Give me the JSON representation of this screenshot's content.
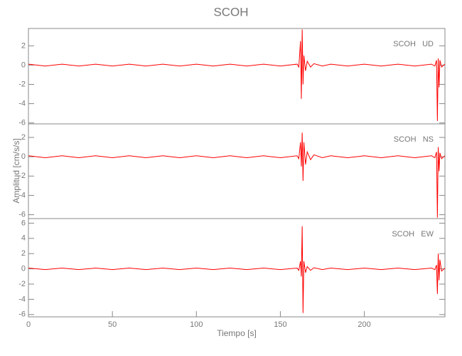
{
  "chart_data": [
    {
      "type": "line",
      "title": "SCOH",
      "annotation": "SCOH   UD",
      "xlim": [
        0,
        248
      ],
      "ylim": [
        -6.1,
        3.8
      ],
      "yticks": [
        -6,
        -4,
        -2,
        0,
        2
      ],
      "series": [
        {
          "color": "#ff0000",
          "x": [
            0,
            10,
            20,
            30,
            40,
            50,
            60,
            70,
            80,
            90,
            100,
            110,
            120,
            130,
            140,
            150,
            160,
            161,
            162,
            162.5,
            163,
            163.5,
            164,
            165,
            166,
            168,
            170,
            175,
            180,
            190,
            200,
            210,
            220,
            230,
            240,
            242,
            243,
            243.5,
            244,
            244.5,
            245,
            246,
            248
          ],
          "values": [
            0.1,
            -0.1,
            0.1,
            -0.1,
            0.1,
            -0.1,
            0.1,
            -0.1,
            0.1,
            -0.1,
            0.1,
            -0.1,
            0.1,
            -0.1,
            0.1,
            -0.1,
            0.1,
            -0.2,
            2.5,
            -3.5,
            3.7,
            -2.0,
            1.0,
            -0.6,
            0.4,
            -0.2,
            0.15,
            -0.1,
            0.1,
            -0.1,
            0.1,
            -0.1,
            0.1,
            -0.1,
            0.1,
            -0.1,
            0.5,
            -5.8,
            0.7,
            -2.3,
            0.5,
            -0.2,
            0.1
          ]
        }
      ]
    },
    {
      "type": "line",
      "y_label": "Amplitud [cm/s/s]",
      "annotation": "SCOH   NS",
      "xlim": [
        0,
        248
      ],
      "ylim": [
        -6.4,
        3.4
      ],
      "yticks": [
        -6,
        -4,
        -2,
        0,
        2
      ],
      "series": [
        {
          "color": "#ff0000",
          "x": [
            0,
            10,
            20,
            30,
            40,
            50,
            60,
            70,
            80,
            90,
            100,
            110,
            120,
            130,
            140,
            150,
            160,
            161,
            162,
            162.5,
            163,
            163.5,
            164,
            165,
            166,
            168,
            170,
            175,
            180,
            190,
            200,
            210,
            220,
            230,
            240,
            242,
            243,
            243.5,
            244,
            244.5,
            245,
            246,
            248
          ],
          "values": [
            0.1,
            -0.1,
            0.1,
            -0.1,
            0.1,
            -0.1,
            0.1,
            -0.1,
            0.1,
            -0.1,
            0.1,
            -0.1,
            0.1,
            -0.1,
            0.1,
            -0.1,
            0.1,
            -0.2,
            1.5,
            -1.0,
            2.5,
            -2.5,
            1.5,
            -0.8,
            0.5,
            -0.3,
            0.2,
            -0.1,
            0.1,
            -0.1,
            0.1,
            -0.1,
            0.1,
            -0.1,
            0.1,
            -0.1,
            0.5,
            -6.3,
            1.0,
            -1.5,
            0.4,
            -0.2,
            0.1
          ]
        }
      ]
    },
    {
      "type": "line",
      "x_label": "Tiempo [s]",
      "annotation": "SCOH   EW",
      "xlim": [
        0,
        248
      ],
      "xticks": [
        0,
        50,
        100,
        150,
        200
      ],
      "ylim": [
        -6.3,
        6.6
      ],
      "yticks": [
        -6,
        -4,
        -2,
        0,
        2,
        4,
        6
      ],
      "series": [
        {
          "color": "#ff0000",
          "x": [
            0,
            10,
            20,
            30,
            40,
            50,
            60,
            70,
            80,
            90,
            100,
            110,
            120,
            130,
            140,
            150,
            160,
            161,
            162,
            162.5,
            163,
            163.5,
            164,
            165,
            166,
            168,
            170,
            175,
            180,
            190,
            200,
            210,
            220,
            230,
            240,
            242,
            243,
            243.5,
            244,
            244.5,
            245,
            246,
            248
          ],
          "values": [
            0.1,
            -0.1,
            0.1,
            -0.1,
            0.1,
            -0.1,
            0.1,
            -0.1,
            0.1,
            -0.1,
            0.1,
            -0.1,
            0.1,
            -0.1,
            0.1,
            -0.1,
            0.1,
            -0.2,
            1.0,
            -1.0,
            5.6,
            -5.8,
            1.0,
            -0.5,
            0.3,
            -0.2,
            0.15,
            -0.1,
            0.1,
            -0.1,
            0.1,
            -0.1,
            0.1,
            -0.1,
            0.1,
            -0.1,
            0.5,
            -3.3,
            2.0,
            -1.5,
            1.2,
            -0.3,
            0.1
          ]
        }
      ]
    }
  ]
}
